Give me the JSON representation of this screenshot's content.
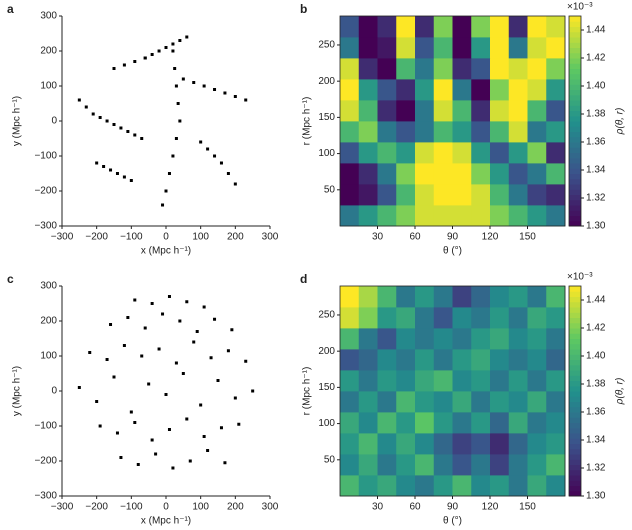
{
  "chart_data": [
    {
      "type": "scatter",
      "panel_label": "a",
      "x_label": "x (Mpc h⁻¹)",
      "y_label": "y (Mpc h⁻¹)",
      "color": "#000000",
      "xlim": [
        -300,
        300
      ],
      "ylim": [
        -300,
        300
      ],
      "xticks": [
        {
          "value": -300,
          "label": "−300"
        },
        {
          "value": -200,
          "label": "−200"
        },
        {
          "value": -100,
          "label": "−100"
        },
        0,
        100,
        200,
        300
      ],
      "yticks": [
        {
          "value": -300,
          "label": "−300"
        },
        {
          "value": -200,
          "label": "−200"
        },
        {
          "value": -100,
          "label": "−100"
        },
        0,
        100,
        200,
        300
      ],
      "x": [
        -250,
        -230,
        -210,
        -190,
        -170,
        -150,
        -130,
        -110,
        -90,
        -70,
        -200,
        -180,
        -160,
        -140,
        -120,
        -100,
        20,
        25,
        30,
        35,
        40,
        30,
        20,
        10,
        0,
        -10,
        50,
        80,
        110,
        140,
        170,
        200,
        230,
        -60,
        -40,
        -20,
        0,
        20,
        40,
        60,
        100,
        120,
        140,
        160,
        -150,
        -120,
        -90,
        -60,
        180,
        200
      ],
      "y": [
        60,
        40,
        20,
        10,
        0,
        -10,
        -20,
        -30,
        -40,
        -50,
        -120,
        -130,
        -140,
        -150,
        -160,
        -170,
        200,
        150,
        100,
        50,
        0,
        -50,
        -100,
        -150,
        -200,
        -240,
        120,
        110,
        100,
        90,
        80,
        70,
        60,
        180,
        190,
        200,
        210,
        220,
        230,
        240,
        -60,
        -80,
        -100,
        -120,
        150,
        160,
        170,
        180,
        -150,
        -180
      ]
    },
    {
      "type": "heatmap",
      "panel_label": "b",
      "x_label": "θ (°)",
      "y_label": "r (Mpc h⁻¹)",
      "colorbar_label": "ρ(θ, r)",
      "multiplier": "×10⁻³",
      "colormap": "viridis",
      "xlim": [
        0,
        180
      ],
      "ylim": [
        0,
        290
      ],
      "xticks": [
        30,
        60,
        90,
        120,
        150
      ],
      "yticks": [
        50,
        100,
        150,
        200,
        250
      ],
      "clim": [
        1.3,
        1.45
      ],
      "cticks": [
        {
          "value": 1.3,
          "label": "1.30"
        },
        {
          "value": 1.32,
          "label": "1.32"
        },
        {
          "value": 1.34,
          "label": "1.34"
        },
        {
          "value": 1.36,
          "label": "1.36"
        },
        {
          "value": 1.38,
          "label": "1.38"
        },
        {
          "value": 1.4,
          "label": "1.40"
        },
        {
          "value": 1.42,
          "label": "1.42"
        },
        {
          "value": 1.44,
          "label": "1.44"
        }
      ],
      "x_edges": [
        0,
        15,
        30,
        45,
        60,
        75,
        90,
        105,
        120,
        135,
        150,
        165,
        180
      ],
      "y_edges": [
        0,
        29,
        58,
        87,
        116,
        145,
        174,
        203,
        232,
        261,
        290
      ],
      "values": [
        [
          1.36,
          1.38,
          1.4,
          1.42,
          1.44,
          1.44,
          1.44,
          1.44,
          1.42,
          1.4,
          1.38,
          1.36
        ],
        [
          1.3,
          1.31,
          1.34,
          1.4,
          1.44,
          1.45,
          1.45,
          1.44,
          1.4,
          1.36,
          1.33,
          1.32
        ],
        [
          1.3,
          1.32,
          1.36,
          1.42,
          1.45,
          1.45,
          1.45,
          1.42,
          1.38,
          1.34,
          1.36,
          1.4
        ],
        [
          1.34,
          1.38,
          1.4,
          1.38,
          1.44,
          1.45,
          1.44,
          1.38,
          1.34,
          1.38,
          1.42,
          1.32
        ],
        [
          1.4,
          1.42,
          1.36,
          1.34,
          1.36,
          1.4,
          1.38,
          1.34,
          1.4,
          1.44,
          1.36,
          1.38
        ],
        [
          1.44,
          1.4,
          1.32,
          1.3,
          1.36,
          1.44,
          1.4,
          1.32,
          1.44,
          1.45,
          1.4,
          1.34
        ],
        [
          1.45,
          1.38,
          1.34,
          1.32,
          1.38,
          1.45,
          1.36,
          1.3,
          1.42,
          1.45,
          1.44,
          1.38
        ],
        [
          1.44,
          1.32,
          1.3,
          1.4,
          1.36,
          1.42,
          1.32,
          1.34,
          1.45,
          1.44,
          1.45,
          1.42
        ],
        [
          1.36,
          1.3,
          1.31,
          1.44,
          1.34,
          1.4,
          1.3,
          1.38,
          1.45,
          1.36,
          1.44,
          1.45
        ],
        [
          1.34,
          1.3,
          1.32,
          1.45,
          1.32,
          1.42,
          1.3,
          1.42,
          1.45,
          1.32,
          1.45,
          1.44
        ]
      ]
    },
    {
      "type": "scatter",
      "panel_label": "c",
      "x_label": "x (Mpc h⁻¹)",
      "y_label": "y (Mpc h⁻¹)",
      "color": "#000000",
      "xlim": [
        -300,
        300
      ],
      "ylim": [
        -300,
        300
      ],
      "xticks": [
        {
          "value": -300,
          "label": "−300"
        },
        {
          "value": -200,
          "label": "−200"
        },
        {
          "value": -100,
          "label": "−100"
        },
        0,
        100,
        200,
        300
      ],
      "yticks": [
        {
          "value": -300,
          "label": "−300"
        },
        {
          "value": -200,
          "label": "−200"
        },
        {
          "value": -100,
          "label": "−100"
        },
        0,
        100,
        200,
        300
      ],
      "x": [
        -250,
        -200,
        -150,
        -100,
        -50,
        0,
        50,
        100,
        150,
        200,
        250,
        -220,
        -170,
        -120,
        -70,
        -20,
        30,
        80,
        130,
        180,
        230,
        -190,
        -140,
        -90,
        -40,
        10,
        60,
        110,
        160,
        210,
        -160,
        -110,
        -60,
        -10,
        40,
        90,
        140,
        190,
        -130,
        -80,
        -30,
        20,
        70,
        120,
        170,
        -90,
        -40,
        10,
        60,
        110
      ],
      "y": [
        10,
        -30,
        40,
        -60,
        20,
        -10,
        50,
        -40,
        30,
        -20,
        0,
        110,
        90,
        130,
        100,
        120,
        80,
        140,
        95,
        115,
        85,
        -100,
        -120,
        -90,
        -140,
        -110,
        -80,
        -130,
        -105,
        -95,
        190,
        210,
        180,
        220,
        200,
        170,
        205,
        175,
        -190,
        -210,
        -180,
        -220,
        -200,
        -170,
        -205,
        260,
        250,
        270,
        255,
        240
      ]
    },
    {
      "type": "heatmap",
      "panel_label": "d",
      "x_label": "θ (°)",
      "y_label": "r (Mpc h⁻¹)",
      "colorbar_label": "ρ(θ, r)",
      "multiplier": "×10⁻³",
      "colormap": "viridis",
      "xlim": [
        0,
        180
      ],
      "ylim": [
        0,
        290
      ],
      "xticks": [
        30,
        60,
        90,
        120,
        150
      ],
      "yticks": [
        50,
        100,
        150,
        200,
        250
      ],
      "clim": [
        1.3,
        1.45
      ],
      "cticks": [
        {
          "value": 1.3,
          "label": "1.30"
        },
        {
          "value": 1.32,
          "label": "1.32"
        },
        {
          "value": 1.34,
          "label": "1.34"
        },
        {
          "value": 1.36,
          "label": "1.36"
        },
        {
          "value": 1.38,
          "label": "1.38"
        },
        {
          "value": 1.4,
          "label": "1.40"
        },
        {
          "value": 1.42,
          "label": "1.42"
        },
        {
          "value": 1.44,
          "label": "1.44"
        }
      ],
      "x_edges": [
        0,
        15,
        30,
        45,
        60,
        75,
        90,
        105,
        120,
        135,
        150,
        165,
        180
      ],
      "y_edges": [
        0,
        29,
        58,
        87,
        116,
        145,
        174,
        203,
        232,
        261,
        290
      ],
      "values": [
        [
          1.4,
          1.38,
          1.39,
          1.37,
          1.36,
          1.38,
          1.4,
          1.37,
          1.38,
          1.36,
          1.39,
          1.37
        ],
        [
          1.37,
          1.39,
          1.36,
          1.38,
          1.4,
          1.36,
          1.34,
          1.36,
          1.33,
          1.36,
          1.38,
          1.4
        ],
        [
          1.38,
          1.4,
          1.37,
          1.39,
          1.37,
          1.35,
          1.33,
          1.34,
          1.32,
          1.35,
          1.37,
          1.38
        ],
        [
          1.39,
          1.37,
          1.4,
          1.38,
          1.41,
          1.38,
          1.36,
          1.38,
          1.35,
          1.39,
          1.36,
          1.37
        ],
        [
          1.36,
          1.38,
          1.36,
          1.4,
          1.38,
          1.37,
          1.39,
          1.36,
          1.38,
          1.37,
          1.39,
          1.36
        ],
        [
          1.38,
          1.36,
          1.38,
          1.37,
          1.39,
          1.4,
          1.37,
          1.38,
          1.36,
          1.38,
          1.36,
          1.38
        ],
        [
          1.34,
          1.35,
          1.37,
          1.36,
          1.38,
          1.36,
          1.38,
          1.39,
          1.37,
          1.36,
          1.37,
          1.35
        ],
        [
          1.4,
          1.36,
          1.34,
          1.37,
          1.36,
          1.37,
          1.36,
          1.38,
          1.39,
          1.37,
          1.38,
          1.36
        ],
        [
          1.44,
          1.42,
          1.38,
          1.39,
          1.36,
          1.34,
          1.37,
          1.36,
          1.38,
          1.36,
          1.39,
          1.38
        ],
        [
          1.45,
          1.43,
          1.4,
          1.36,
          1.38,
          1.36,
          1.33,
          1.35,
          1.37,
          1.38,
          1.36,
          1.4
        ]
      ]
    }
  ]
}
